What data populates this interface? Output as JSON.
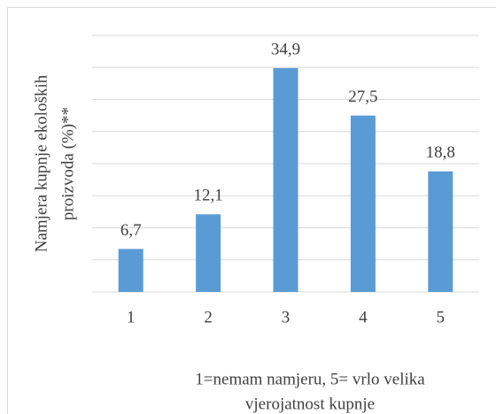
{
  "chart_data": {
    "type": "bar",
    "y_label": [
      "Namjera kupnje ekoloških",
      "proizvoda (%)**"
    ],
    "x_label": [
      "1=nemam namjeru, 5= vrlo velika",
      "vjerojatnost kupnje"
    ],
    "categories": [
      "1",
      "2",
      "3",
      "4",
      "5"
    ],
    "values": [
      6.7,
      12.1,
      34.9,
      27.5,
      18.8
    ],
    "value_labels": [
      "6,7",
      "12,1",
      "34,9",
      "27,5",
      "18,8"
    ],
    "color": "#5b9bd5",
    "ylim": [
      0,
      40
    ],
    "yticks": [
      0,
      5,
      10,
      15,
      20,
      25,
      30,
      35,
      40
    ],
    "grid": true
  }
}
